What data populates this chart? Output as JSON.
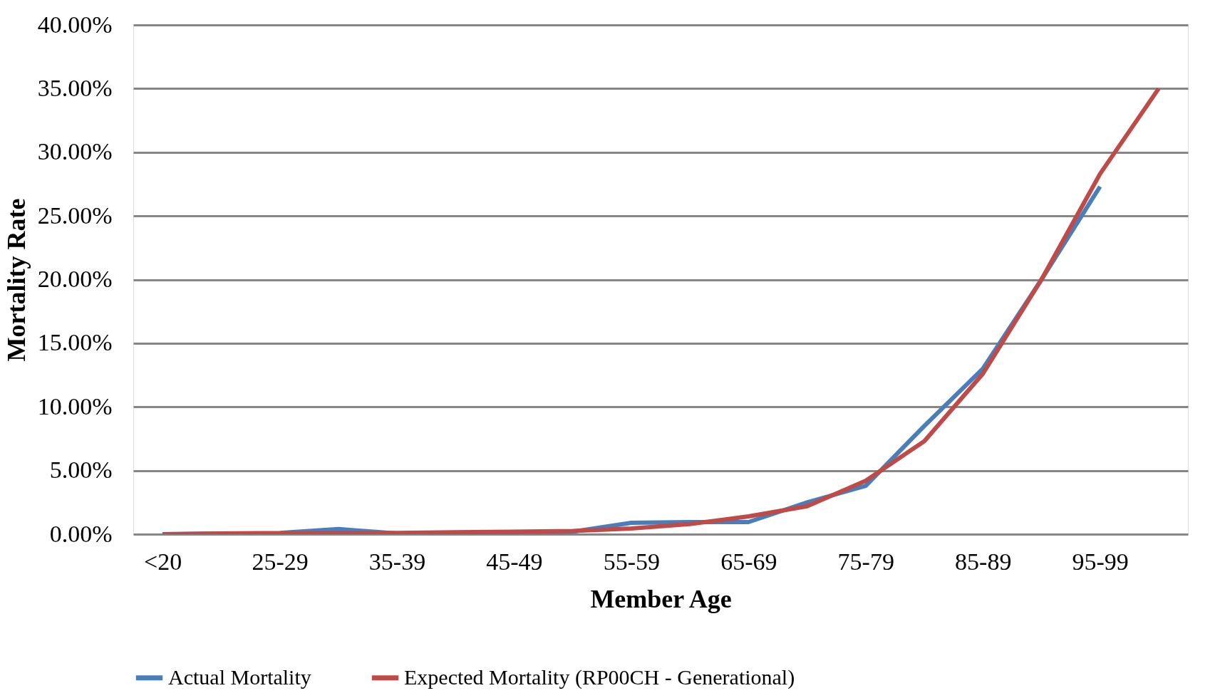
{
  "chart_data": {
    "type": "line",
    "xlabel": "Member Age",
    "ylabel": "Mortality Rate",
    "categories": [
      "<20",
      null,
      "25-29",
      null,
      "35-39",
      null,
      "45-49",
      null,
      "55-59",
      null,
      "65-69",
      null,
      "75-79",
      null,
      "85-89",
      null,
      "95-99",
      null
    ],
    "series": [
      {
        "name": "Actual Mortality",
        "color": "#4a7ebb",
        "values": [
          0,
          0.05,
          0.1,
          0.4,
          0.05,
          0.05,
          0.05,
          0.2,
          0.9,
          0.95,
          0.95,
          2.5,
          3.8,
          8.5,
          13.0,
          20.0,
          27.3,
          null
        ]
      },
      {
        "name": "Expected Mortality (RP00CH - Generational)",
        "color": "#be4b48",
        "values": [
          0,
          0.05,
          0.05,
          0.1,
          0.1,
          0.15,
          0.2,
          0.25,
          0.45,
          0.8,
          1.4,
          2.2,
          4.2,
          7.3,
          12.6,
          20.0,
          28.3,
          35.0
        ]
      }
    ],
    "ylim": [
      0,
      40
    ],
    "yticks": [
      {
        "value": 0,
        "label": "0.00%"
      },
      {
        "value": 5,
        "label": "5.00%"
      },
      {
        "value": 10,
        "label": "10.00%"
      },
      {
        "value": 15,
        "label": "15.00%"
      },
      {
        "value": 20,
        "label": "20.00%"
      },
      {
        "value": 25,
        "label": "25.00%"
      },
      {
        "value": 30,
        "label": "30.00%"
      },
      {
        "value": 35,
        "label": "35.00%"
      },
      {
        "value": 40,
        "label": "40.00%"
      }
    ],
    "grid": "y",
    "legend": "bottom",
    "marker": "none",
    "line_style": "solid"
  }
}
